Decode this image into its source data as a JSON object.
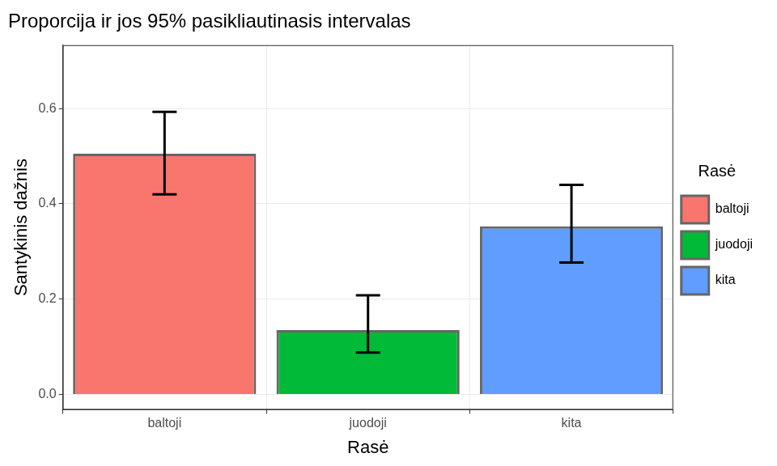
{
  "chart_data": {
    "type": "bar",
    "title": "Proporcija ir jos 95% pasikliautinasis intervalas",
    "x_label": "Rasė",
    "y_label": "Santykinis dažnis",
    "legend_title": "Rasė",
    "categories": [
      "baltoji",
      "juodoji",
      "kita"
    ],
    "values": [
      0.505,
      0.135,
      0.353
    ],
    "ci_lower": [
      0.42,
      0.088,
      0.277
    ],
    "ci_upper": [
      0.593,
      0.208,
      0.44
    ],
    "colors": [
      "#F8766D",
      "#00BA38",
      "#619CFF"
    ],
    "ylim": [
      -0.032,
      0.733
    ],
    "yticks": [
      {
        "value": 0,
        "label": "0.0"
      },
      {
        "value": 0.2,
        "label": "0.2"
      },
      {
        "value": 0.4,
        "label": "0.4"
      },
      {
        "value": 0.6,
        "label": "0.6"
      }
    ],
    "grid": true,
    "legend": "right"
  }
}
